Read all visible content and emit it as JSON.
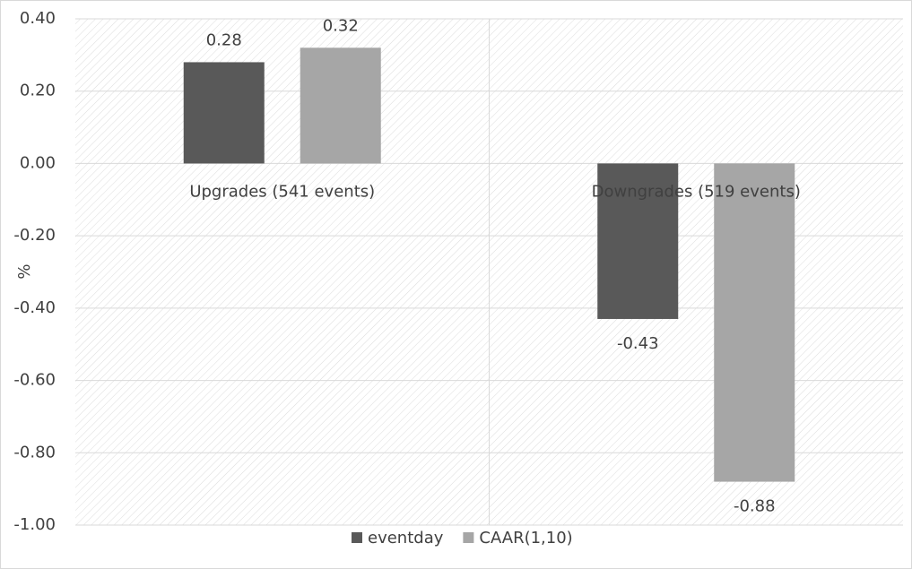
{
  "chart_data": {
    "type": "bar",
    "categories": [
      "Upgrades (541 events)",
      "Downgrades (519 events)"
    ],
    "series": [
      {
        "name": "eventday",
        "color": "#595959",
        "values": [
          0.28,
          -0.43
        ]
      },
      {
        "name": "CAAR(1,10)",
        "color": "#a6a6a6",
        "values": [
          0.32,
          -0.88
        ]
      }
    ],
    "y_label": "%",
    "ylim": [
      -1.0,
      0.4
    ],
    "yticks": [
      {
        "value": 0.4,
        "label": "0.40"
      },
      {
        "value": 0.2,
        "label": "0.20"
      },
      {
        "value": 0,
        "label": "0.00"
      },
      {
        "value": -0.2,
        "label": "-0.20"
      },
      {
        "value": -0.4,
        "label": "-0.40"
      },
      {
        "value": -0.6,
        "label": "-0.60"
      },
      {
        "value": -0.8,
        "label": "-0.80"
      },
      {
        "value": -1.0,
        "label": "-1.00"
      }
    ],
    "grid": true,
    "legend": "bottom"
  }
}
